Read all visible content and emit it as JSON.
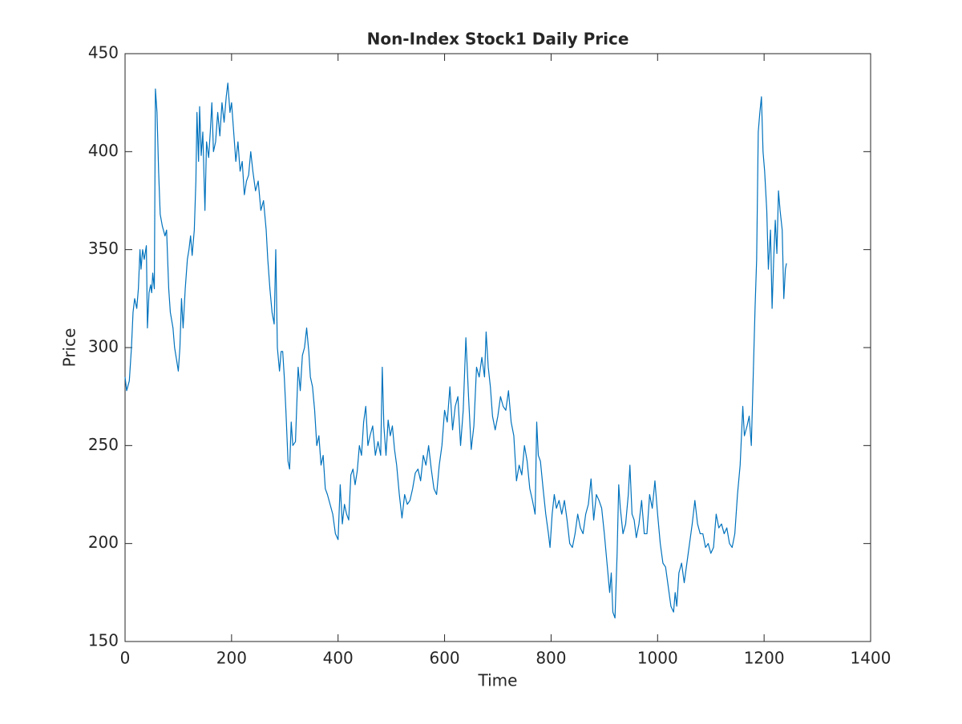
{
  "chart_data": {
    "type": "line",
    "title": "Non-Index Stock1 Daily Price",
    "x_label": "Time",
    "y_label": "Price",
    "color": "#0072bd",
    "grid": false,
    "xlim": [
      0,
      1400
    ],
    "xticks": [
      0,
      200,
      400,
      600,
      800,
      1000,
      1200,
      1400
    ],
    "ylim": [
      150,
      450
    ],
    "yticks": [
      150,
      200,
      250,
      300,
      350,
      400,
      450
    ],
    "x": [
      0,
      3,
      8,
      12,
      15,
      18,
      22,
      25,
      28,
      30,
      33,
      36,
      40,
      42,
      45,
      48,
      50,
      52,
      55,
      57,
      60,
      63,
      66,
      70,
      75,
      78,
      82,
      85,
      90,
      93,
      96,
      100,
      103,
      106,
      109,
      113,
      117,
      120,
      123,
      126,
      130,
      133,
      135,
      138,
      140,
      143,
      146,
      150,
      153,
      157,
      160,
      163,
      166,
      170,
      174,
      178,
      182,
      186,
      190,
      193,
      197,
      200,
      204,
      208,
      212,
      216,
      220,
      224,
      228,
      232,
      236,
      240,
      245,
      250,
      255,
      260,
      265,
      268,
      272,
      276,
      280,
      283,
      286,
      290,
      293,
      296,
      299,
      302,
      306,
      309,
      312,
      315,
      320,
      325,
      329,
      333,
      337,
      341,
      345,
      348,
      352,
      356,
      360,
      364,
      368,
      372,
      376,
      380,
      385,
      390,
      395,
      400,
      404,
      408,
      412,
      416,
      420,
      424,
      428,
      432,
      436,
      440,
      444,
      448,
      452,
      456,
      460,
      465,
      470,
      475,
      480,
      483,
      486,
      490,
      494,
      498,
      502,
      506,
      510,
      515,
      520,
      525,
      530,
      535,
      540,
      545,
      550,
      555,
      560,
      565,
      570,
      575,
      580,
      585,
      590,
      595,
      600,
      605,
      610,
      615,
      620,
      625,
      630,
      635,
      640,
      645,
      650,
      655,
      660,
      665,
      670,
      675,
      678,
      682,
      686,
      690,
      695,
      700,
      705,
      710,
      715,
      720,
      725,
      730,
      735,
      740,
      745,
      750,
      755,
      760,
      765,
      770,
      773,
      776,
      780,
      785,
      790,
      795,
      798,
      802,
      806,
      810,
      815,
      820,
      825,
      830,
      835,
      840,
      845,
      850,
      855,
      860,
      865,
      870,
      875,
      880,
      885,
      890,
      895,
      900,
      905,
      910,
      913,
      916,
      920,
      924,
      927,
      930,
      935,
      940,
      945,
      948,
      952,
      956,
      960,
      965,
      970,
      975,
      980,
      985,
      990,
      995,
      1000,
      1005,
      1010,
      1015,
      1020,
      1025,
      1030,
      1033,
      1036,
      1040,
      1045,
      1050,
      1055,
      1060,
      1065,
      1070,
      1075,
      1080,
      1085,
      1090,
      1095,
      1100,
      1105,
      1110,
      1115,
      1120,
      1125,
      1130,
      1135,
      1140,
      1145,
      1150,
      1155,
      1160,
      1163,
      1168,
      1172,
      1176,
      1180,
      1183,
      1186,
      1189,
      1192,
      1195,
      1198,
      1201,
      1205,
      1208,
      1212,
      1215,
      1218,
      1221,
      1224,
      1227,
      1230,
      1234,
      1237,
      1240,
      1242
    ],
    "values": [
      285,
      278,
      283,
      300,
      318,
      325,
      320,
      330,
      350,
      340,
      350,
      345,
      352,
      310,
      328,
      332,
      328,
      338,
      330,
      432,
      420,
      390,
      368,
      362,
      357,
      360,
      330,
      318,
      310,
      300,
      295,
      288,
      300,
      325,
      310,
      330,
      345,
      350,
      357,
      347,
      360,
      385,
      420,
      395,
      423,
      398,
      410,
      370,
      405,
      397,
      410,
      425,
      400,
      405,
      420,
      408,
      425,
      415,
      428,
      435,
      420,
      425,
      410,
      395,
      405,
      390,
      395,
      378,
      385,
      388,
      400,
      390,
      380,
      385,
      370,
      375,
      360,
      345,
      330,
      318,
      312,
      350,
      300,
      288,
      298,
      298,
      285,
      268,
      242,
      238,
      262,
      250,
      252,
      290,
      278,
      296,
      300,
      310,
      298,
      285,
      280,
      268,
      250,
      255,
      240,
      245,
      228,
      225,
      220,
      215,
      205,
      202,
      230,
      210,
      220,
      215,
      212,
      235,
      238,
      230,
      237,
      250,
      245,
      262,
      270,
      250,
      255,
      260,
      245,
      252,
      245,
      290,
      260,
      245,
      263,
      255,
      260,
      248,
      240,
      225,
      213,
      225,
      220,
      222,
      228,
      236,
      238,
      232,
      245,
      240,
      250,
      238,
      228,
      225,
      240,
      250,
      268,
      262,
      280,
      258,
      270,
      275,
      250,
      268,
      305,
      275,
      248,
      260,
      290,
      285,
      295,
      285,
      308,
      290,
      280,
      265,
      258,
      265,
      275,
      270,
      268,
      278,
      262,
      255,
      232,
      240,
      235,
      250,
      242,
      228,
      222,
      215,
      262,
      245,
      242,
      228,
      215,
      205,
      198,
      215,
      225,
      218,
      222,
      215,
      222,
      212,
      200,
      198,
      205,
      215,
      208,
      205,
      215,
      220,
      233,
      212,
      225,
      222,
      218,
      205,
      190,
      175,
      185,
      165,
      162,
      195,
      230,
      218,
      205,
      210,
      225,
      240,
      215,
      212,
      203,
      210,
      222,
      205,
      205,
      225,
      218,
      232,
      215,
      200,
      190,
      188,
      178,
      168,
      165,
      175,
      168,
      185,
      190,
      180,
      190,
      200,
      210,
      222,
      210,
      205,
      205,
      198,
      200,
      195,
      198,
      215,
      208,
      210,
      205,
      208,
      200,
      198,
      205,
      225,
      240,
      270,
      255,
      260,
      265,
      250,
      290,
      320,
      345,
      410,
      420,
      428,
      400,
      390,
      370,
      340,
      360,
      320,
      345,
      365,
      348,
      380,
      370,
      360,
      325,
      340,
      343
    ]
  }
}
